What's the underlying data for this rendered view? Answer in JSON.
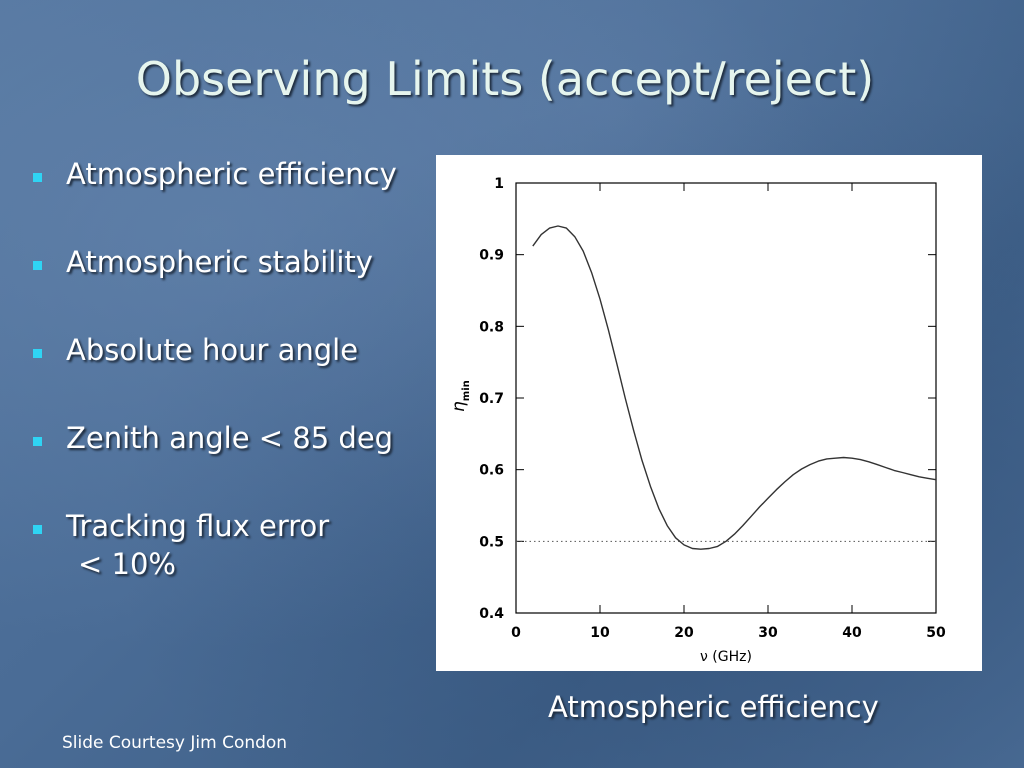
{
  "slide": {
    "title": "Observing Limits (accept/reject)",
    "bullets": [
      {
        "lines": [
          "Atmospheric efficiency"
        ]
      },
      {
        "lines": [
          "Atmospheric stability"
        ]
      },
      {
        "lines": [
          "Absolute hour angle"
        ]
      },
      {
        "lines": [
          "Zenith angle < 85 deg"
        ]
      },
      {
        "lines": [
          "Tracking flux error",
          "< 10%"
        ]
      }
    ],
    "caption": "Atmospheric efficiency",
    "credit": "Slide Courtesy Jim Condon"
  },
  "colors": {
    "title": "#e6f5ee",
    "bullet_marker": "#2fd4f4",
    "text": "#ffffff"
  },
  "chart_data": {
    "type": "line",
    "xlabel": "ν (GHz)",
    "ylabel": "η",
    "ylabel_subscript": "min",
    "xlim": [
      0,
      50
    ],
    "ylim": [
      0.4,
      1.0
    ],
    "xticks": [
      0,
      10,
      20,
      30,
      40,
      50
    ],
    "yticks": [
      0.4,
      0.5,
      0.6,
      0.7,
      0.8,
      0.9,
      1
    ],
    "xtick_labels": [
      "0",
      "10",
      "20",
      "30",
      "40",
      "50"
    ],
    "ytick_labels": [
      "0.4",
      "0.5",
      "0.6",
      "0.7",
      "0.8",
      "0.9",
      "1"
    ],
    "series": [
      {
        "x": [
          2,
          3,
          4,
          5,
          6,
          7,
          8,
          9,
          10,
          11,
          12,
          13,
          14,
          15,
          16,
          17,
          18,
          19,
          20,
          21,
          22,
          23,
          24,
          25,
          26,
          27,
          28,
          29,
          30,
          31,
          32,
          33,
          34,
          35,
          36,
          37,
          38,
          39,
          40,
          41,
          42,
          43,
          44,
          45,
          46,
          47,
          48,
          49,
          50
        ],
        "y": [
          0.912,
          0.928,
          0.937,
          0.94,
          0.937,
          0.925,
          0.905,
          0.875,
          0.838,
          0.795,
          0.748,
          0.7,
          0.655,
          0.613,
          0.577,
          0.546,
          0.522,
          0.505,
          0.495,
          0.49,
          0.489,
          0.49,
          0.493,
          0.5,
          0.51,
          0.522,
          0.535,
          0.548,
          0.56,
          0.572,
          0.583,
          0.593,
          0.601,
          0.607,
          0.612,
          0.615,
          0.616,
          0.617,
          0.616,
          0.614,
          0.611,
          0.607,
          0.603,
          0.599,
          0.596,
          0.593,
          0.59,
          0.588,
          0.586
        ]
      }
    ],
    "reference_lines": [
      {
        "y": 0.5,
        "style": "dotted"
      }
    ],
    "grid": false,
    "legend": "none"
  }
}
